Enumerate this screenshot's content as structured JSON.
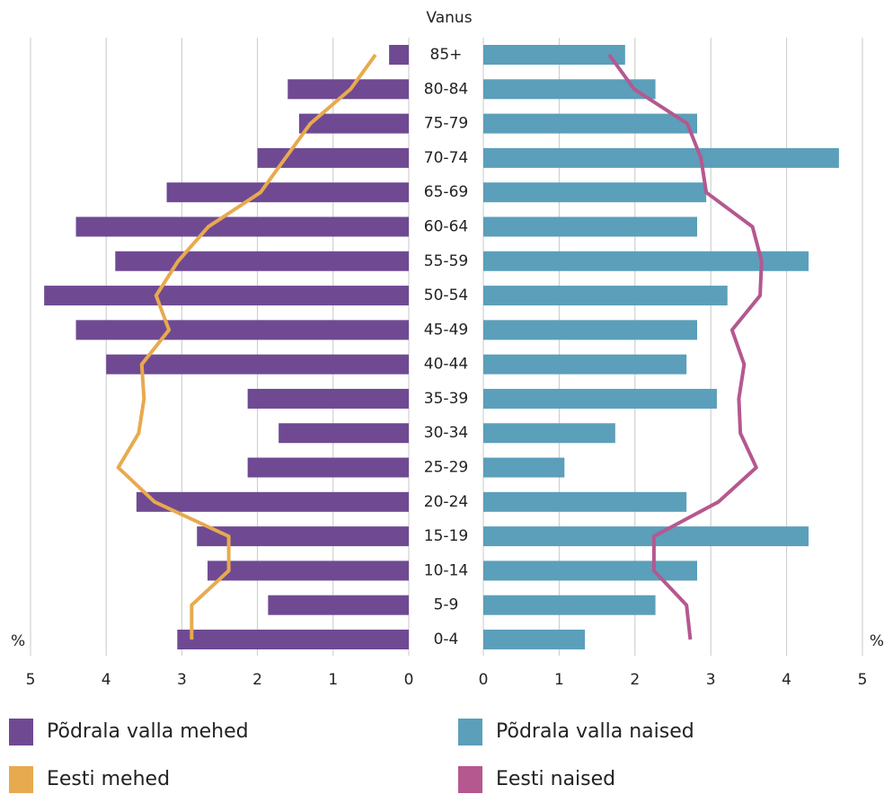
{
  "chart_data": {
    "type": "pyramid",
    "category_label": "Vanus",
    "x_label": "%",
    "categories": [
      "85+",
      "80-84",
      "75-79",
      "70-74",
      "65-69",
      "60-64",
      "55-59",
      "50-54",
      "45-49",
      "40-44",
      "35-39",
      "30-34",
      "25-29",
      "20-24",
      "15-19",
      "10-14",
      "5-9",
      "0-4"
    ],
    "xlim": [
      0,
      5
    ],
    "xticks": [
      0,
      1,
      2,
      3,
      4,
      5
    ],
    "grid": true,
    "series": [
      {
        "name": "Põdrala valla mehed",
        "color": "#6f4a93",
        "kind": "bar",
        "side": "left",
        "values": [
          0.26,
          1.6,
          1.45,
          2.0,
          3.2,
          4.4,
          3.88,
          4.82,
          4.4,
          4.0,
          2.13,
          1.72,
          2.13,
          3.6,
          2.8,
          2.66,
          1.86,
          3.06
        ]
      },
      {
        "name": "Põdrala valla naised",
        "color": "#5b9fba",
        "kind": "bar",
        "side": "right",
        "values": [
          1.87,
          2.27,
          2.82,
          4.69,
          2.94,
          2.82,
          4.29,
          3.22,
          2.82,
          2.68,
          3.08,
          1.74,
          1.07,
          2.68,
          4.29,
          2.82,
          2.27,
          1.34
        ]
      },
      {
        "name": "Eesti mehed",
        "color": "#e8aa4e",
        "kind": "line",
        "side": "left",
        "values": [
          0.44,
          0.77,
          1.3,
          1.63,
          1.96,
          2.65,
          3.05,
          3.34,
          3.17,
          3.53,
          3.5,
          3.57,
          3.84,
          3.36,
          2.38,
          2.38,
          2.87,
          2.87
        ]
      },
      {
        "name": "Eesti naised",
        "color": "#b5588f",
        "kind": "line",
        "side": "right",
        "values": [
          1.66,
          1.99,
          2.69,
          2.87,
          2.94,
          3.55,
          3.67,
          3.65,
          3.28,
          3.44,
          3.37,
          3.39,
          3.6,
          3.1,
          2.25,
          2.25,
          2.68,
          2.73
        ]
      }
    ]
  }
}
